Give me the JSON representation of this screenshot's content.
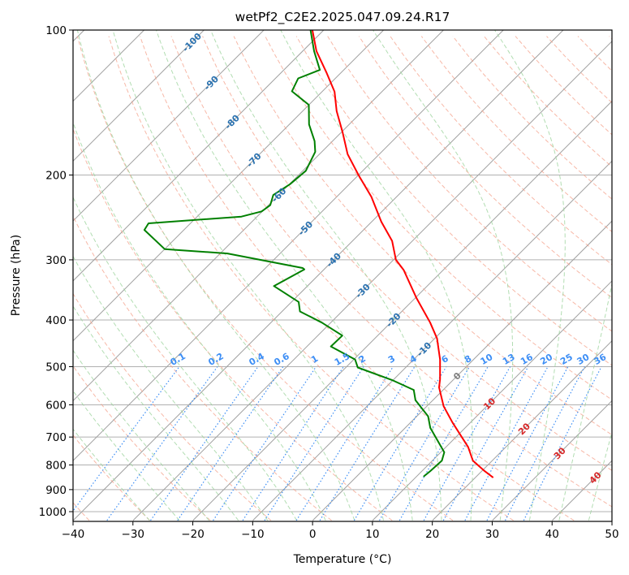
{
  "chart_data": {
    "type": "line",
    "subtype": "skew-t log-p",
    "title": "wetPf2_C2E2.2025.047.09.24.R17",
    "xlabel": "Temperature (°C)",
    "ylabel": "Pressure (hPa)",
    "xlim": [
      -40,
      50
    ],
    "ylim": [
      1043,
      100
    ],
    "x_ticks": [
      -40,
      -30,
      -20,
      -10,
      0,
      10,
      20,
      30,
      40,
      50
    ],
    "y_ticks": [
      100,
      200,
      300,
      400,
      500,
      600,
      700,
      800,
      900,
      1000
    ],
    "grid": true,
    "isotherm_labels": [
      -100,
      -90,
      -80,
      -70,
      -60,
      -50,
      -40,
      -30,
      -20,
      -10,
      0,
      10,
      20,
      30,
      40
    ],
    "mixing_ratio_labels": [
      "0.1",
      "0.2",
      "0.4",
      "0.6",
      "1",
      "1.5",
      "2",
      "3",
      "4",
      "6",
      "8",
      "10",
      "13",
      "16",
      "20",
      "25",
      "30",
      "36"
    ],
    "series": [
      {
        "name": "Temperature",
        "color": "#ff0000",
        "pressure": [
          100,
          110.6,
          122.9,
          134.3,
          147.4,
          163,
          181,
          200,
          222,
          250,
          274,
          300,
          315,
          360,
          405,
          437,
          483,
          531,
          552,
          604,
          653,
          734,
          784,
          824,
          850
        ],
        "temperature": [
          -81.9,
          -77.7,
          -72.3,
          -67.9,
          -64.3,
          -59.8,
          -55.3,
          -50.0,
          -44.2,
          -38.4,
          -33.4,
          -29.6,
          -26.6,
          -19.8,
          -13.4,
          -9.6,
          -5.6,
          -2.3,
          -1.1,
          2.8,
          7.0,
          13.7,
          16.8,
          20.5,
          23.0
        ]
      },
      {
        "name": "Dewpoint",
        "color": "#008000",
        "pressure": [
          100,
          110.6,
          121,
          126,
          134,
          143,
          157,
          170,
          179,
          196,
          209,
          220,
          231,
          238,
          244,
          252,
          260,
          285,
          291,
          312,
          314,
          340,
          367,
          384,
          405,
          431,
          454,
          483,
          502,
          533,
          559,
          587,
          634,
          670,
          753,
          784,
          824,
          846
        ],
        "temperature": [
          -82.2,
          -78.1,
          -74.0,
          -76.2,
          -75.1,
          -70.0,
          -66.7,
          -63.0,
          -61.1,
          -59.5,
          -59.9,
          -60.9,
          -59.7,
          -60.1,
          -62.6,
          -77.0,
          -76.6,
          -70.0,
          -58.8,
          -43.8,
          -43.3,
          -45.6,
          -38.8,
          -37.0,
          -31.5,
          -25.9,
          -26.0,
          -19.8,
          -18.0,
          -10.2,
          -4.9,
          -2.9,
          1.9,
          4.2,
          10.6,
          11.6,
          11.4,
          11.2
        ]
      }
    ]
  },
  "colors": {
    "isotherm": "#a0a0a0",
    "dry_adiabat": "#f4a08a",
    "moist_adiabat": "#9fd49f",
    "mixing_ratio": "#3d8ef5",
    "isotherm_label_cold": "#2b72b0",
    "isotherm_label_zero": "#808080",
    "isotherm_label_warm": "#d62728",
    "mixing_label": "#3d8ef5"
  }
}
